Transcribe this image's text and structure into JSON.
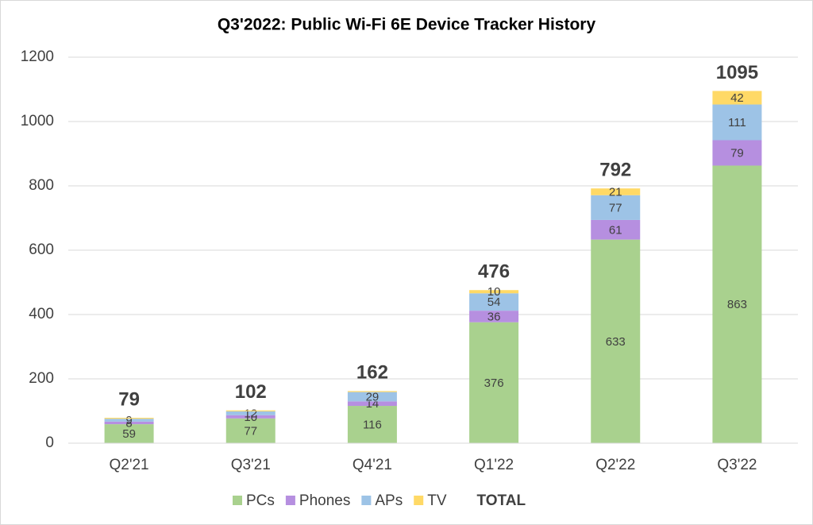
{
  "chart_data": {
    "type": "stacked-bar",
    "title": "Q3'2022: Public Wi-Fi 6E Device Tracker History",
    "categories": [
      "Q2'21",
      "Q3'21",
      "Q4'21",
      "Q1'22",
      "Q2'22",
      "Q3'22"
    ],
    "series": [
      {
        "name": "PCs",
        "color": "#a9d18e",
        "values": [
          59,
          77,
          116,
          376,
          633,
          863
        ]
      },
      {
        "name": "Phones",
        "color": "#b68fe0",
        "values": [
          8,
          10,
          14,
          36,
          61,
          79
        ]
      },
      {
        "name": "APs",
        "color": "#9dc3e6",
        "values": [
          9,
          12,
          29,
          54,
          77,
          111
        ]
      },
      {
        "name": "TV",
        "color": "#ffd966",
        "values": [
          3,
          3,
          3,
          10,
          21,
          42
        ]
      }
    ],
    "total": {
      "name": "TOTAL",
      "values": [
        79,
        102,
        162,
        476,
        792,
        1095
      ]
    },
    "ylim": [
      0,
      1200
    ],
    "yticks": [
      0,
      200,
      400,
      600,
      800,
      1000,
      1200
    ],
    "grid": true,
    "legend": "bottom"
  }
}
